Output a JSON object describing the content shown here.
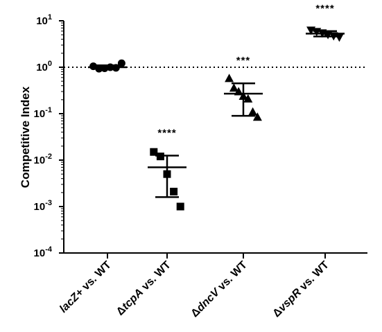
{
  "chart_data": {
    "type": "scatter",
    "title": "",
    "ylabel": "Competitive Index",
    "xlabel": "",
    "yscale": "log",
    "ylim": [
      0.0001,
      10
    ],
    "yticks": [
      {
        "value": 10,
        "base": "10",
        "exp": "1"
      },
      {
        "value": 1,
        "base": "10",
        "exp": "0"
      },
      {
        "value": 0.1,
        "base": "10",
        "exp": "-1"
      },
      {
        "value": 0.01,
        "base": "10",
        "exp": "-2"
      },
      {
        "value": 0.001,
        "base": "10",
        "exp": "-3"
      },
      {
        "value": 0.0001,
        "base": "10",
        "exp": "-4"
      }
    ],
    "reference_line": {
      "y": 1,
      "style": "dotted"
    },
    "categories": [
      {
        "parts": [
          {
            "t": "lacZ+",
            "i": true
          },
          {
            "t": " vs. WT",
            "i": false
          }
        ]
      },
      {
        "parts": [
          {
            "t": "Δ",
            "i": false
          },
          {
            "t": "tcpA",
            "i": true
          },
          {
            "t": " vs. WT",
            "i": false
          }
        ]
      },
      {
        "parts": [
          {
            "t": "Δ",
            "i": false
          },
          {
            "t": "dncV",
            "i": true
          },
          {
            "t": "  vs. WT",
            "i": false
          }
        ]
      },
      {
        "parts": [
          {
            "t": "Δ",
            "i": false
          },
          {
            "t": "vspR",
            "i": true
          },
          {
            "t": " vs. WT",
            "i": false
          }
        ]
      }
    ],
    "groups": [
      {
        "marker": "circle",
        "points": [
          1.05,
          0.93,
          0.95,
          1.0,
          0.97,
          1.22
        ],
        "mean": 1.0,
        "sd_low": 0.92,
        "sd_high": 1.1,
        "significance": ""
      },
      {
        "marker": "square",
        "points": [
          0.015,
          0.012,
          0.005,
          0.0021,
          0.001
        ],
        "mean": 0.007,
        "sd_low": 0.0016,
        "sd_high": 0.0125,
        "significance": "****"
      },
      {
        "marker": "triangle-up",
        "points": [
          0.58,
          0.36,
          0.3,
          0.24,
          0.21,
          0.11,
          0.085
        ],
        "mean": 0.27,
        "sd_low": 0.09,
        "sd_high": 0.45,
        "significance": "***"
      },
      {
        "marker": "triangle-down",
        "points": [
          6.2,
          5.8,
          5.4,
          5.0,
          4.7,
          4.4
        ],
        "mean": 5.3,
        "sd_low": 4.6,
        "sd_high": 6.0,
        "significance": "****"
      }
    ]
  }
}
